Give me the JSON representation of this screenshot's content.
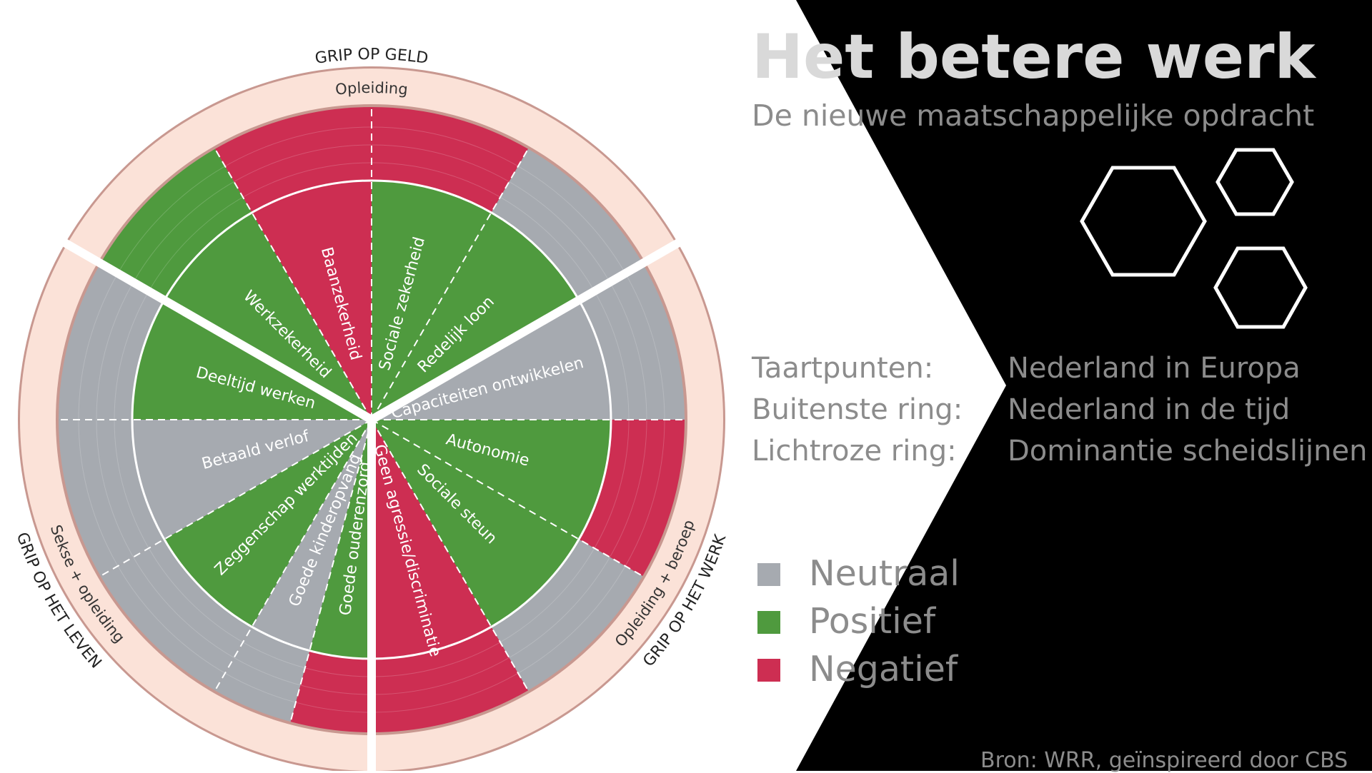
{
  "slide": {
    "title": "Het betere werk",
    "subtitle": "De nieuwe maatschappelijke opdracht",
    "source": "Bron: WRR, geïnspireerd door CBS"
  },
  "info": [
    {
      "key": "Taartpunten:",
      "value": "Nederland in Europa"
    },
    {
      "key": "Buitenste ring:",
      "value": "Nederland in de tijd"
    },
    {
      "key": "Lichtroze ring:",
      "value": "Dominantie scheidslijnen"
    }
  ],
  "legend": [
    {
      "label": "Neutraal",
      "color": "#a6aab0"
    },
    {
      "label": "Positief",
      "color": "#4f9a3e"
    },
    {
      "label": "Negatief",
      "color": "#cd2e52"
    }
  ],
  "colors": {
    "neutral": "#a6aab0",
    "positive": "#4f9a3e",
    "negative": "#cd2e52",
    "ring": "#fbe2d8",
    "dark_panel": "#000000"
  },
  "wheel": {
    "grip_labels": {
      "geld": "GRIP OP GELD",
      "werk": "GRIP OP HET WERK",
      "leven": "GRIP OP HET LEVEN"
    },
    "ring_labels": {
      "geld": "Opleiding",
      "werk": "Opleiding + beroep",
      "leven": "Sekse + opleiding"
    },
    "slices": [
      {
        "label": "Sociale zekerheid",
        "inner": "positive",
        "outer": "negative"
      },
      {
        "label": "Redelijk loon",
        "inner": "positive",
        "outer": "neutral"
      },
      {
        "label": "Capaciteiten ontwikkelen",
        "inner": "neutral",
        "outer": "neutral"
      },
      {
        "label": "Autonomie",
        "inner": "positive",
        "outer": "negative"
      },
      {
        "label": "Sociale steun",
        "inner": "positive",
        "outer": "neutral"
      },
      {
        "label": "Geen agressie/discriminatie",
        "inner": "negative",
        "outer": "negative"
      },
      {
        "label": "Goede ouderenzorg",
        "inner": "positive",
        "outer": "negative"
      },
      {
        "label": "Goede kinderopvang",
        "inner": "neutral",
        "outer": "neutral"
      },
      {
        "label": "Zeggenschap werktijden",
        "inner": "positive",
        "outer": "neutral"
      },
      {
        "label": "Betaald verlof",
        "inner": "neutral",
        "outer": "neutral"
      },
      {
        "label": "Deeltijd werken",
        "inner": "positive",
        "outer": "neutral"
      },
      {
        "label": "Werkzekerheid",
        "inner": "positive",
        "outer": "positive"
      },
      {
        "label": "Baanzekerheid",
        "inner": "negative",
        "outer": "negative"
      }
    ]
  }
}
